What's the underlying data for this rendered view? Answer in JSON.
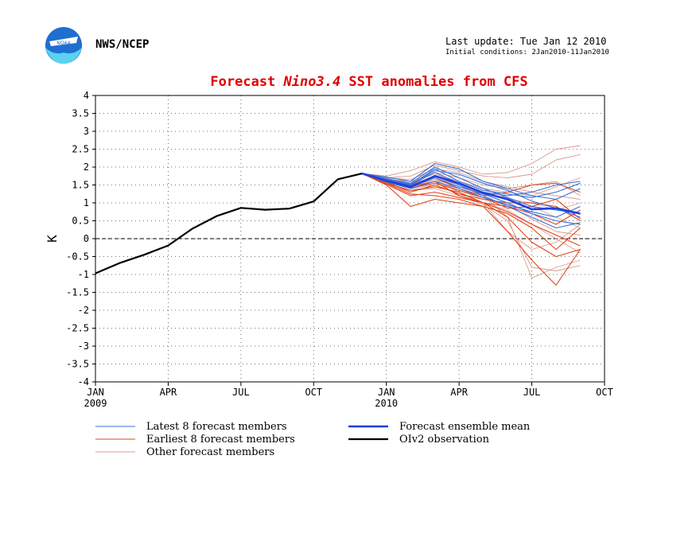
{
  "header": {
    "org": "NWS/NCEP",
    "last_update": "Last update: Tue Jan 12 2010",
    "initial_conditions": "Initial conditions: 2Jan2010-11Jan2010"
  },
  "logo": {
    "text": "NOAA"
  },
  "chart_data": {
    "type": "line",
    "title_pre": "Forecast ",
    "title_em": "Nino3.4",
    "title_post": " SST anomalies from CFS",
    "ylabel": "K",
    "ylim": [
      -4,
      4
    ],
    "yticks": [
      4,
      3.5,
      3,
      2.5,
      2,
      1.5,
      1,
      0.5,
      0,
      -0.5,
      -1,
      -1.5,
      -2,
      -2.5,
      -3,
      -3.5,
      -4
    ],
    "xlim": [
      0,
      21
    ],
    "xticks": [
      {
        "x": 0,
        "label": "JAN",
        "sub": "2009"
      },
      {
        "x": 3,
        "label": "APR",
        "sub": ""
      },
      {
        "x": 6,
        "label": "JUL",
        "sub": ""
      },
      {
        "x": 9,
        "label": "OCT",
        "sub": ""
      },
      {
        "x": 12,
        "label": "JAN",
        "sub": "2010"
      },
      {
        "x": 15,
        "label": "APR",
        "sub": ""
      },
      {
        "x": 18,
        "label": "JUL",
        "sub": ""
      },
      {
        "x": 21,
        "label": "OCT",
        "sub": ""
      }
    ],
    "grid": true,
    "zero_line": true,
    "colors": {
      "latest": "#3a6fd8",
      "earliest": "#e0431a",
      "other": "#d89a8c",
      "mean": "#1f3fe0",
      "obs": "#000000"
    },
    "observation": {
      "name": "OIv2 observation",
      "x": [
        0,
        1,
        2,
        3,
        4,
        5,
        6,
        7,
        8,
        9,
        10,
        11
      ],
      "y": [
        -0.97,
        -0.68,
        -0.45,
        -0.19,
        0.28,
        0.63,
        0.86,
        0.81,
        0.84,
        1.04,
        1.66,
        1.82
      ]
    },
    "ensemble_mean": {
      "name": "Forecast ensemble mean",
      "x": [
        11,
        12,
        13,
        14,
        15,
        16,
        17,
        18,
        19,
        20
      ],
      "y": [
        1.82,
        1.62,
        1.45,
        1.75,
        1.55,
        1.28,
        1.1,
        0.82,
        0.85,
        0.7
      ]
    },
    "latest_members": {
      "name": "Latest 8 forecast members",
      "x": [
        11,
        12,
        13,
        14,
        15,
        16,
        17,
        18,
        19,
        20
      ],
      "series": [
        [
          1.82,
          1.72,
          1.6,
          2.1,
          1.95,
          1.6,
          1.4,
          1.2,
          1.1,
          1.4
        ],
        [
          1.82,
          1.68,
          1.55,
          2.0,
          1.7,
          1.4,
          1.15,
          0.9,
          0.8,
          0.7
        ],
        [
          1.82,
          1.62,
          1.5,
          1.85,
          1.55,
          1.3,
          1.2,
          1.3,
          1.5,
          1.6
        ],
        [
          1.82,
          1.6,
          1.45,
          1.7,
          1.45,
          1.25,
          1.0,
          0.7,
          0.5,
          0.4
        ],
        [
          1.82,
          1.58,
          1.4,
          1.6,
          1.4,
          1.15,
          0.95,
          0.75,
          0.6,
          0.9
        ],
        [
          1.82,
          1.65,
          1.52,
          1.9,
          1.8,
          1.55,
          1.35,
          1.05,
          0.85,
          0.6
        ],
        [
          1.82,
          1.6,
          1.48,
          1.75,
          1.5,
          1.2,
          0.9,
          0.6,
          0.3,
          0.45
        ],
        [
          1.82,
          1.63,
          1.5,
          1.95,
          1.6,
          1.35,
          1.25,
          1.15,
          1.3,
          1.55
        ]
      ]
    },
    "earliest_members": {
      "name": "Earliest 8 forecast members",
      "x": [
        11,
        12,
        13,
        14,
        15,
        16,
        17,
        18,
        19,
        20
      ],
      "series": [
        [
          1.82,
          1.55,
          1.35,
          1.45,
          1.3,
          1.0,
          0.6,
          -0.1,
          -0.5,
          -0.3
        ],
        [
          1.82,
          1.5,
          0.9,
          1.1,
          1.0,
          0.9,
          0.2,
          -0.6,
          -1.3,
          -0.3
        ],
        [
          1.82,
          1.6,
          1.45,
          1.6,
          1.2,
          1.0,
          0.9,
          0.7,
          0.4,
          0.8
        ],
        [
          1.82,
          1.58,
          1.3,
          1.5,
          1.25,
          1.1,
          1.0,
          1.0,
          0.9,
          0.5
        ],
        [
          1.82,
          1.52,
          1.2,
          1.3,
          1.15,
          1.0,
          0.75,
          0.4,
          0.1,
          -0.2
        ],
        [
          1.82,
          1.6,
          1.5,
          1.7,
          1.4,
          1.2,
          1.3,
          1.5,
          1.55,
          1.3
        ],
        [
          1.82,
          1.55,
          1.25,
          1.2,
          1.1,
          0.9,
          0.7,
          0.3,
          -0.3,
          0.3
        ],
        [
          1.82,
          1.6,
          1.42,
          1.55,
          1.35,
          1.15,
          0.85,
          0.9,
          1.1,
          0.55
        ]
      ]
    },
    "other_members": {
      "name": "Other forecast members",
      "x": [
        11,
        12,
        13,
        14,
        15,
        16,
        17,
        18,
        19,
        20
      ],
      "series": [
        [
          1.82,
          1.75,
          1.9,
          2.15,
          2.0,
          1.8,
          1.85,
          2.1,
          2.5,
          2.6
        ],
        [
          1.82,
          1.7,
          1.75,
          2.05,
          1.9,
          1.75,
          1.7,
          1.8,
          2.2,
          2.35
        ],
        [
          1.82,
          1.6,
          1.55,
          1.7,
          1.5,
          1.2,
          0.6,
          -1.1,
          -0.8,
          -0.6
        ],
        [
          1.82,
          1.62,
          1.5,
          1.65,
          1.3,
          1.0,
          0.2,
          -0.3,
          -0.1,
          0.4
        ],
        [
          1.82,
          1.65,
          1.6,
          1.8,
          1.6,
          1.4,
          1.3,
          1.2,
          1.45,
          1.7
        ],
        [
          1.82,
          1.58,
          1.4,
          1.5,
          1.25,
          1.0,
          0.8,
          0.4,
          0.0,
          -0.4
        ],
        [
          1.82,
          1.66,
          1.55,
          1.85,
          1.7,
          1.5,
          1.4,
          1.5,
          1.6,
          1.2
        ],
        [
          1.82,
          1.6,
          1.45,
          1.65,
          1.45,
          1.3,
          1.1,
          1.0,
          0.8,
          1.0
        ],
        [
          1.82,
          1.55,
          1.35,
          1.4,
          1.2,
          0.95,
          0.5,
          -0.8,
          -0.9,
          -0.75
        ],
        [
          1.82,
          1.63,
          1.5,
          1.75,
          1.5,
          1.25,
          1.15,
          0.9,
          0.6,
          0.3
        ],
        [
          1.82,
          1.7,
          1.65,
          1.95,
          1.85,
          1.6,
          1.45,
          1.3,
          1.2,
          1.1
        ],
        [
          1.82,
          1.6,
          1.45,
          1.6,
          1.35,
          1.1,
          0.95,
          0.55,
          0.2,
          0.1
        ]
      ]
    },
    "legend": {
      "placement": "bottom",
      "items": [
        {
          "key": "latest",
          "label": "Latest 8 forecast members"
        },
        {
          "key": "mean",
          "label": "Forecast ensemble mean"
        },
        {
          "key": "earliest",
          "label": "Earliest 8 forecast members"
        },
        {
          "key": "obs",
          "label": "OIv2 observation"
        },
        {
          "key": "other",
          "label": "Other forecast members"
        }
      ]
    }
  }
}
